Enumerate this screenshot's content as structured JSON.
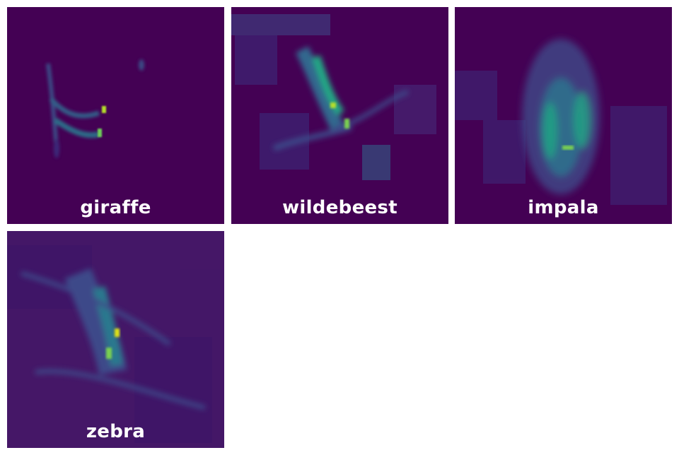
{
  "tiles": [
    {
      "label": "giraffe"
    },
    {
      "label": "wildebeest"
    },
    {
      "label": "impala"
    },
    {
      "label": "zebra"
    }
  ],
  "colors": {
    "background": "#440154",
    "low": "#3b2f7e",
    "mid": "#2a788e",
    "high": "#22a884",
    "peak": "#fde725"
  }
}
